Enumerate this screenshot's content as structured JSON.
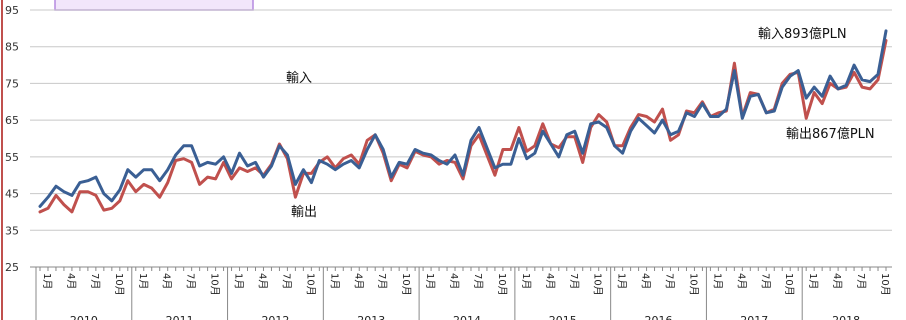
{
  "chart_data": {
    "type": "line",
    "ylim": [
      25,
      95
    ],
    "yticks": [
      25,
      35,
      45,
      55,
      65,
      75,
      85,
      95
    ],
    "years": [
      "2010",
      "2011",
      "2012",
      "2013",
      "2014",
      "2015",
      "2016",
      "2017",
      "2018"
    ],
    "month_labels": [
      "1月",
      "4月",
      "7月",
      "10月"
    ],
    "grid": "horizontal",
    "legend": "none",
    "series": [
      {
        "name": "輸入",
        "color": "#3a5f94",
        "values": [
          41.5,
          44,
          47,
          45.5,
          44.5,
          48,
          48.5,
          49.5,
          45,
          43,
          46,
          51.5,
          49.5,
          51.5,
          51.5,
          48.5,
          51.5,
          55.5,
          58,
          58,
          52.5,
          53.5,
          53,
          55,
          50.5,
          56,
          52.5,
          53.5,
          49.5,
          52.5,
          58,
          55.5,
          47.5,
          51.5,
          48,
          54,
          53,
          51.5,
          53,
          54,
          52,
          57,
          61,
          57,
          49.5,
          53.5,
          53,
          57,
          56,
          55.5,
          54,
          53,
          55.5,
          50,
          59.5,
          63,
          57.5,
          52,
          53,
          53,
          60,
          54.5,
          56,
          62,
          58.5,
          55,
          61,
          62,
          56,
          64,
          64.5,
          63,
          58,
          56,
          62,
          65.5,
          63.5,
          61.5,
          65,
          61,
          62,
          67,
          66,
          69.5,
          66,
          66,
          68,
          78.5,
          65.5,
          71.5,
          72,
          67,
          67.5,
          74,
          77,
          78.5,
          71,
          74,
          71.5,
          77,
          73.5,
          74.5,
          80,
          76,
          75.5,
          77.5,
          89.3
        ]
      },
      {
        "name": "輸出",
        "color": "#c0504d",
        "values": [
          40,
          41,
          44.5,
          42,
          40,
          45.5,
          45.5,
          44.5,
          40.5,
          41,
          43,
          48.5,
          45.5,
          47.5,
          46.5,
          44,
          48,
          54,
          54.5,
          53.5,
          47.5,
          49.5,
          49,
          53.5,
          49,
          52,
          51,
          52,
          50,
          53,
          58.5,
          54.5,
          44,
          50.5,
          50.5,
          53.5,
          55,
          52,
          54.5,
          55.5,
          53,
          59.5,
          61,
          56,
          48.5,
          53,
          52,
          56.5,
          55.5,
          55,
          53,
          54,
          53.5,
          49,
          58,
          61,
          55.5,
          50,
          57,
          57,
          63,
          56.5,
          58,
          64,
          58.5,
          57.5,
          60.5,
          60.5,
          53.5,
          63,
          66.5,
          64.5,
          58,
          58,
          63,
          66.5,
          66,
          64.5,
          68,
          59.5,
          61,
          67.5,
          67,
          70,
          66,
          67,
          67.5,
          80.5,
          66,
          72.5,
          72,
          67,
          68,
          75,
          77.5,
          78,
          65.5,
          72.5,
          69.5,
          75,
          73.5,
          74,
          78,
          74,
          73.5,
          76,
          86.7
        ]
      }
    ],
    "annotations": {
      "import_label": "輸入",
      "export_label": "輸出",
      "import_last": "輸入893億PLN",
      "export_last": "輸出867億PLN"
    }
  }
}
